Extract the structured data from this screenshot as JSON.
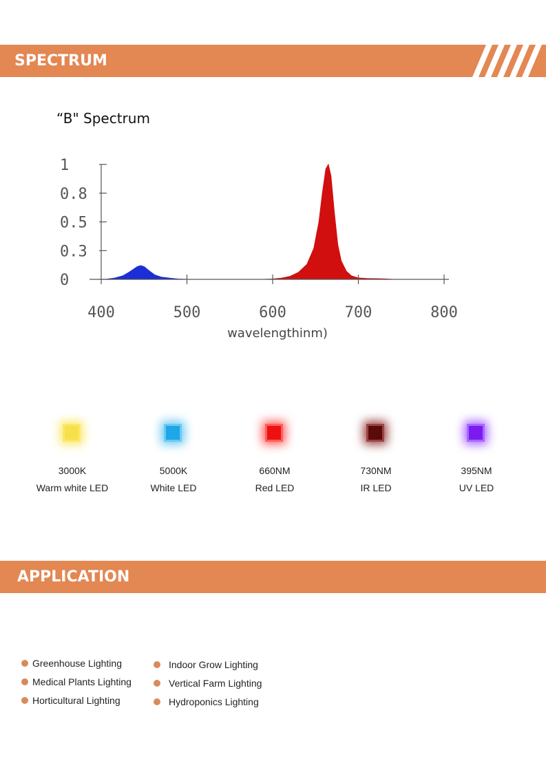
{
  "sections": {
    "spectrum_heading": "SPECTRUM",
    "application_heading": "APPLICATION"
  },
  "spectrum_title": "“B\" Spectrum",
  "chart_data": {
    "type": "area",
    "title": "“B\" Spectrum",
    "xlabel": "wavelengthinm)",
    "ylabel": "",
    "xlim": [
      400,
      800
    ],
    "ylim": [
      0,
      1
    ],
    "x_ticks": [
      "400",
      "500",
      "600",
      "700",
      "800"
    ],
    "y_ticks": [
      "0",
      "0.3",
      "0.5",
      "0.8",
      "1"
    ],
    "series": [
      {
        "color": "#1a2fd6",
        "x": [
          405,
          415,
          425,
          432,
          438,
          442,
          446,
          450,
          455,
          462,
          470,
          480,
          490,
          500
        ],
        "y": [
          0.0,
          0.01,
          0.03,
          0.06,
          0.09,
          0.11,
          0.12,
          0.11,
          0.08,
          0.04,
          0.02,
          0.01,
          0.003,
          0.0
        ]
      },
      {
        "color": "#d10f0f",
        "x": [
          590,
          600,
          610,
          620,
          630,
          640,
          648,
          654,
          658,
          662,
          665,
          668,
          672,
          676,
          680,
          686,
          692,
          700,
          710,
          720,
          730,
          740
        ],
        "y": [
          0.0,
          0.003,
          0.01,
          0.025,
          0.06,
          0.13,
          0.27,
          0.5,
          0.75,
          0.96,
          1.0,
          0.9,
          0.58,
          0.3,
          0.16,
          0.07,
          0.03,
          0.012,
          0.008,
          0.006,
          0.004,
          0.0
        ]
      }
    ],
    "grid": false,
    "legend": "none"
  },
  "leds": [
    {
      "value": "3000K",
      "name": "Warm white LED",
      "color": "#f7e04a",
      "glow": "#fbe86a"
    },
    {
      "value": "5000K",
      "name": "White LED",
      "color": "#1ea6e8",
      "glow": "#6cc9f2"
    },
    {
      "value": "660NM",
      "name": "Red LED",
      "color": "#ee1111",
      "glow": "#ff5f5f"
    },
    {
      "value": "730NM",
      "name": "IR LED",
      "color": "#5b0a0a",
      "glow": "#9b4444"
    },
    {
      "value": "395NM",
      "name": "UV LED",
      "color": "#7a1cf0",
      "glow": "#a967ff"
    }
  ],
  "applications": {
    "left": [
      "Greenhouse Lighting",
      "Medical Plants Lighting",
      "Horticultural Lighting"
    ],
    "right": [
      "Indoor Grow Lighting",
      "Vertical Farm Lighting",
      "Hydroponics Lighting"
    ]
  },
  "colors": {
    "accent": "#e38753",
    "bullet": "#d98a5c"
  }
}
